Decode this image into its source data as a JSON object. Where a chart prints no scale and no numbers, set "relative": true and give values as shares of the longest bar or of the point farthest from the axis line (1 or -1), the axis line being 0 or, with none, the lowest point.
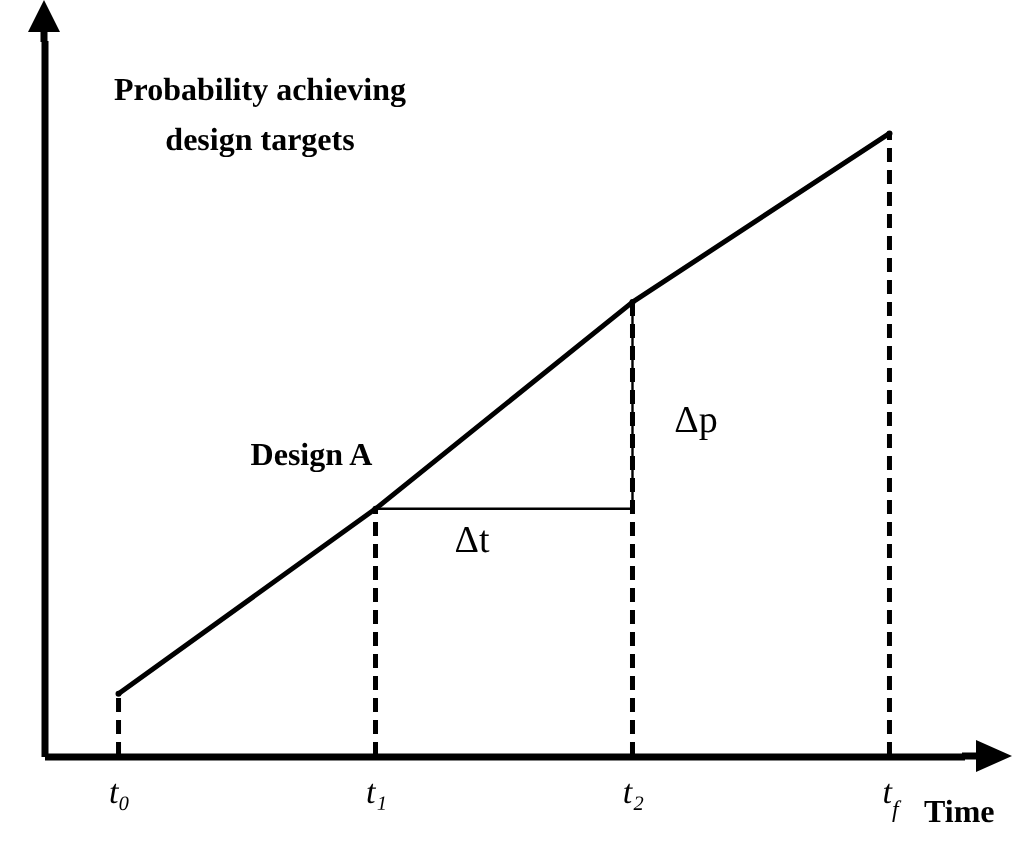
{
  "chart_data": {
    "type": "line",
    "relative": true,
    "xlabel": "Time",
    "ylabel": "Probability achieving design targets",
    "categories": [
      "t₀",
      "t₁",
      "t₂",
      "t$_{f}$"
    ],
    "series": [
      {
        "color": "#000000",
        "values": [
          0.1,
          0.397,
          0.729,
          1
        ]
      },
      {
        "type": "lollipop",
        "color": "#000000",
        "line_style": "dashed",
        "values": [
          0.1,
          0.397,
          0.729,
          1
        ]
      },
      {
        "type": "line",
        "color": "#000000",
        "x": [
          "t₁",
          "t₂",
          "t₂"
        ],
        "values": [
          0.397,
          0.397,
          0.729
        ]
      }
    ],
    "marker": "none",
    "annotations": [
      {
        "text": "Design A",
        "x": "t₁",
        "y": 0.397
      },
      "Δt",
      "Δp"
    ]
  }
}
